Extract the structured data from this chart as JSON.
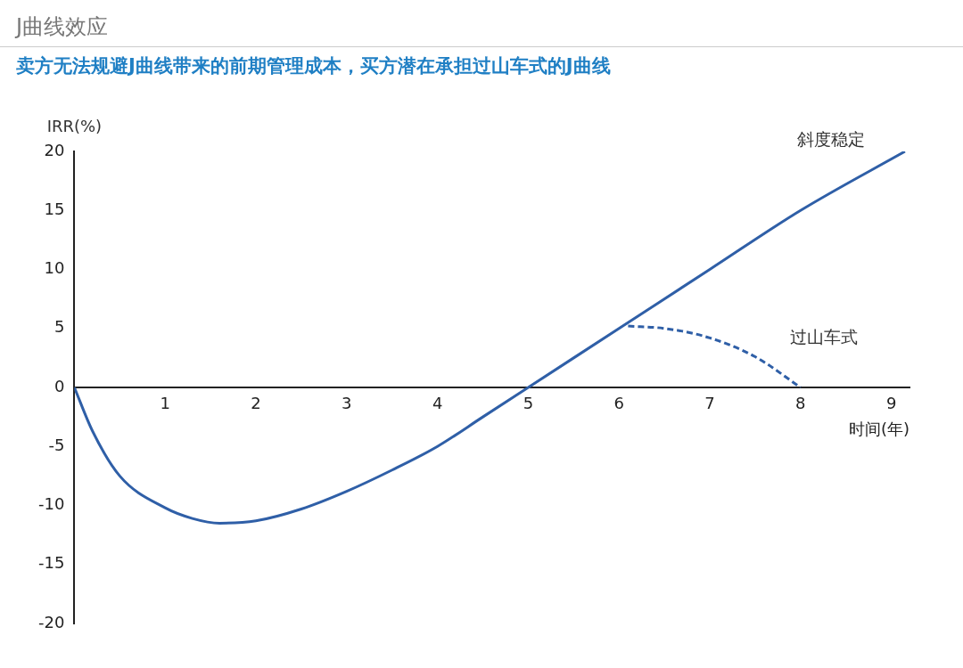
{
  "chart_data": {
    "type": "line",
    "title": "J曲线效应",
    "subtitle": "卖方无法规避J曲线带来的前期管理成本，买方潜在承担过山车式的J曲线",
    "xlabel": "时间(年)",
    "ylabel": "IRR(%)",
    "xlim": [
      0,
      9.2
    ],
    "xticks": [
      1,
      2,
      3,
      4,
      5,
      6,
      7,
      8,
      9
    ],
    "ylim": [
      -20,
      20
    ],
    "yticks": [
      -20,
      -15,
      -10,
      -5,
      0,
      5,
      10,
      15,
      20
    ],
    "grid": false,
    "legend": false,
    "marker": "none",
    "series": [
      {
        "name": "斜度稳定",
        "color": "#2f5fa7",
        "line_style": "solid",
        "x": [
          0,
          0.2,
          0.5,
          1,
          1.3,
          1.6,
          2,
          2.5,
          3,
          3.5,
          4,
          4.5,
          5,
          6,
          7,
          8,
          9.15
        ],
        "values": [
          0,
          -3.7,
          -7.5,
          -10.2,
          -11.1,
          -11.5,
          -11.3,
          -10.3,
          -8.8,
          -7,
          -5,
          -2.5,
          0,
          5,
          10,
          15,
          20
        ]
      },
      {
        "name": "过山车式",
        "color": "#2f5fa7",
        "line_style": "dashed",
        "x": [
          6.1,
          6.5,
          7,
          7.5,
          8
        ],
        "values": [
          5.2,
          5,
          4.2,
          2.6,
          0
        ]
      }
    ]
  }
}
